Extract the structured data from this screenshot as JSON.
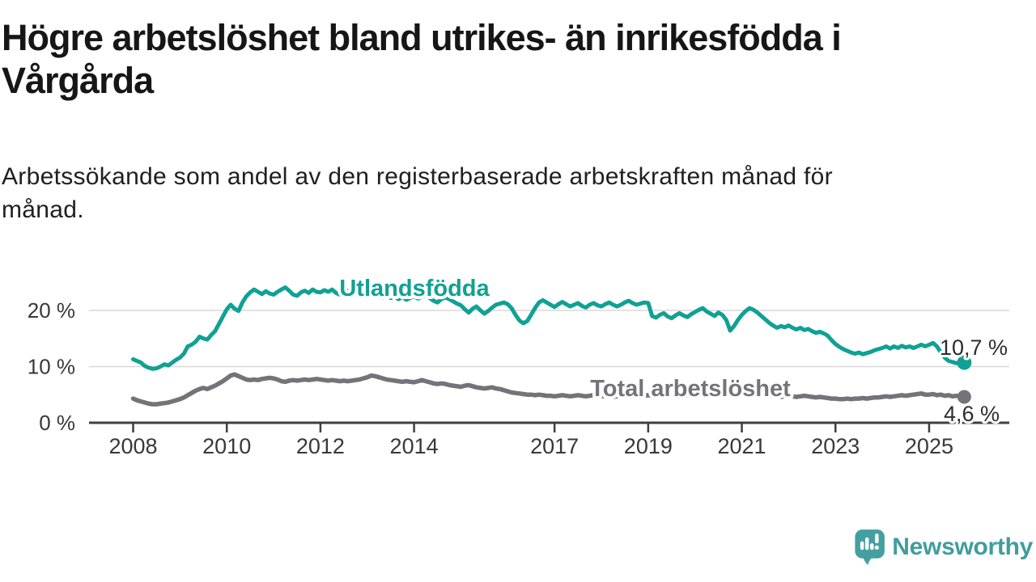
{
  "header": {
    "title_lines": [
      "Högre arbetslöshet bland utrikes- än inrikesfödda i",
      "Vårgårda"
    ],
    "subtitle_lines": [
      "Arbetssökande som andel av den registerbaserade arbetskraften månad för",
      "månad."
    ]
  },
  "logo": {
    "text": "Newsworthy",
    "icon": "speech-bubble-with-bar-chart-and-exclamation",
    "color": "#449fa0"
  },
  "colors": {
    "accent_teal": "#10a194",
    "series_gray": "#75737a",
    "axis": "#3f3f3f",
    "gridline": "#d9d9d9",
    "value_label_text": "#2d2d2d"
  },
  "chart_data": {
    "type": "line",
    "unit": "%",
    "grid": "horizontal-only",
    "legend_position": "inline-labels-on-lines",
    "x_axis": {
      "ticks": [
        2008,
        2010,
        2012,
        2014,
        2017,
        2019,
        2021,
        2023,
        2025
      ],
      "range": [
        2008,
        2025.83
      ]
    },
    "y_axis": {
      "ticks": [
        {
          "value": 0,
          "label": "0 %"
        },
        {
          "value": 10,
          "label": "10 %"
        },
        {
          "value": 20,
          "label": "20 %"
        }
      ],
      "range": [
        0,
        26
      ]
    },
    "series": [
      {
        "name": "Utlandsfödda",
        "color": "#10a194",
        "end_label": "10,7 %",
        "end_value": 10.7,
        "start_year": 2008,
        "step_months": 1,
        "values": [
          11.3,
          11.0,
          10.7,
          10.1,
          9.8,
          9.6,
          9.7,
          10.0,
          10.4,
          10.2,
          10.7,
          11.2,
          11.6,
          12.3,
          13.6,
          13.9,
          14.4,
          15.3,
          15.0,
          14.8,
          15.6,
          16.3,
          17.6,
          18.9,
          20.2,
          21.0,
          20.3,
          19.9,
          21.4,
          22.5,
          23.2,
          23.7,
          23.3,
          22.9,
          23.4,
          23.0,
          22.8,
          23.3,
          23.7,
          24.1,
          23.5,
          22.8,
          22.6,
          23.2,
          23.5,
          23.1,
          23.7,
          23.3,
          23.2,
          23.6,
          23.3,
          23.7,
          23.1,
          22.8,
          23.2,
          23.5,
          23.1,
          22.8,
          23.3,
          22.9,
          23.1,
          22.7,
          22.4,
          22.8,
          22.3,
          22.6,
          22.2,
          22.5,
          22.0,
          22.4,
          21.9,
          22.2,
          22.5,
          22.1,
          22.4,
          22.6,
          22.2,
          21.7,
          21.4,
          22.0,
          22.3,
          22.0,
          21.6,
          21.2,
          20.9,
          20.2,
          19.6,
          20.3,
          20.7,
          20.0,
          19.4,
          19.9,
          20.5,
          21.0,
          21.2,
          21.4,
          21.1,
          20.4,
          19.2,
          18.2,
          17.7,
          18.1,
          19.2,
          20.4,
          21.4,
          21.8,
          21.4,
          21.0,
          20.6,
          21.1,
          21.5,
          21.1,
          20.7,
          21.0,
          21.3,
          20.8,
          20.5,
          21.0,
          21.3,
          20.9,
          20.7,
          21.1,
          21.4,
          21.0,
          20.7,
          21.0,
          21.4,
          21.7,
          21.3,
          21.0,
          21.2,
          21.4,
          21.3,
          19.0,
          18.7,
          19.2,
          19.5,
          18.9,
          18.6,
          19.1,
          19.5,
          19.1,
          18.8,
          19.3,
          19.7,
          20.1,
          20.4,
          19.8,
          19.4,
          19.0,
          19.6,
          19.2,
          18.3,
          16.4,
          17.2,
          18.3,
          19.2,
          19.9,
          20.4,
          20.1,
          19.6,
          19.0,
          18.4,
          17.8,
          17.3,
          16.9,
          17.2,
          17.0,
          17.3,
          16.9,
          16.6,
          16.9,
          16.5,
          16.7,
          16.3,
          16.0,
          16.2,
          15.9,
          15.5,
          14.7,
          14.0,
          13.5,
          13.1,
          12.8,
          12.5,
          12.3,
          12.5,
          12.2,
          12.4,
          12.6,
          12.9,
          13.1,
          13.3,
          13.6,
          13.2,
          13.6,
          13.3,
          13.7,
          13.4,
          13.6,
          13.3,
          13.6,
          13.9,
          13.6,
          13.9,
          14.2,
          13.6,
          12.5,
          11.6,
          11.0,
          10.8,
          10.6,
          10.6,
          10.7
        ]
      },
      {
        "name": "Total arbetslöshet",
        "color": "#75737a",
        "end_label": "4,6 %",
        "end_value": 4.6,
        "start_year": 2008,
        "step_months": 1,
        "values": [
          4.3,
          4.0,
          3.8,
          3.6,
          3.4,
          3.3,
          3.3,
          3.4,
          3.5,
          3.6,
          3.8,
          4.0,
          4.2,
          4.5,
          4.9,
          5.3,
          5.7,
          6.0,
          6.2,
          6.0,
          6.3,
          6.6,
          7.0,
          7.4,
          7.9,
          8.4,
          8.6,
          8.3,
          8.0,
          7.7,
          7.6,
          7.7,
          7.6,
          7.8,
          7.9,
          8.0,
          7.9,
          7.7,
          7.4,
          7.3,
          7.5,
          7.6,
          7.5,
          7.6,
          7.7,
          7.6,
          7.7,
          7.8,
          7.7,
          7.6,
          7.5,
          7.6,
          7.5,
          7.4,
          7.5,
          7.4,
          7.5,
          7.6,
          7.7,
          7.9,
          8.1,
          8.4,
          8.3,
          8.1,
          7.9,
          7.7,
          7.6,
          7.5,
          7.4,
          7.3,
          7.4,
          7.3,
          7.2,
          7.4,
          7.6,
          7.4,
          7.2,
          7.0,
          6.9,
          7.0,
          6.9,
          6.7,
          6.6,
          6.5,
          6.4,
          6.6,
          6.7,
          6.5,
          6.3,
          6.2,
          6.1,
          6.2,
          6.3,
          6.1,
          6.0,
          5.8,
          5.6,
          5.4,
          5.3,
          5.2,
          5.1,
          5.0,
          5.0,
          4.9,
          5.0,
          4.9,
          4.8,
          4.8,
          4.7,
          4.8,
          4.9,
          4.8,
          4.7,
          4.8,
          4.9,
          4.8,
          4.7,
          4.8,
          4.9,
          4.8,
          4.7,
          4.8,
          4.7,
          4.6,
          4.7,
          4.8,
          4.7,
          4.6,
          4.7,
          4.8,
          4.7,
          4.8,
          4.9,
          4.8,
          4.9,
          5.0,
          4.9,
          4.8,
          4.9,
          5.0,
          4.9,
          5.0,
          4.9,
          5.0,
          5.1,
          5.2,
          5.4,
          5.5,
          5.4,
          5.3,
          5.4,
          5.3,
          5.2,
          5.1,
          5.0,
          4.9,
          5.0,
          5.1,
          5.0,
          4.9,
          4.8,
          4.9,
          4.8,
          4.7,
          4.8,
          4.7,
          4.6,
          4.7,
          4.8,
          4.7,
          4.6,
          4.7,
          4.8,
          4.7,
          4.6,
          4.5,
          4.6,
          4.5,
          4.4,
          4.3,
          4.3,
          4.2,
          4.2,
          4.3,
          4.2,
          4.3,
          4.3,
          4.4,
          4.3,
          4.4,
          4.5,
          4.5,
          4.6,
          4.7,
          4.6,
          4.7,
          4.8,
          4.9,
          4.8,
          4.9,
          5.0,
          5.1,
          5.2,
          5.0,
          5.0,
          5.1,
          4.9,
          5.0,
          4.8,
          4.9,
          4.7,
          4.8,
          4.7,
          4.6
        ]
      }
    ]
  }
}
